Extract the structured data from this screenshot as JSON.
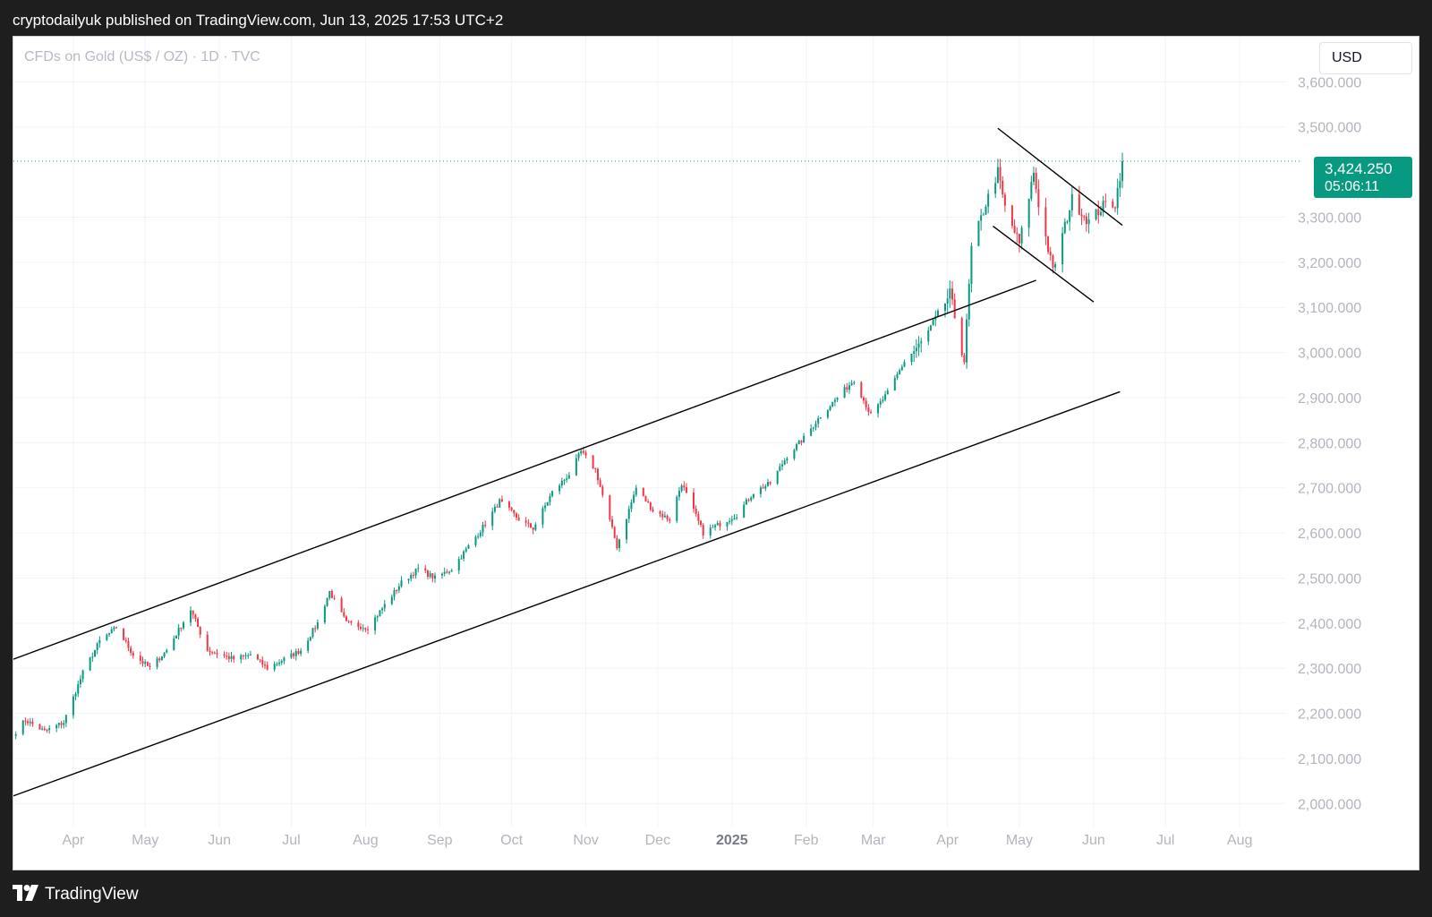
{
  "header": {
    "publish_line": "cryptodailyuk published on TradingView.com, Jun 13, 2025 17:53 UTC+2"
  },
  "chart": {
    "symbol_title": "CFDs on Gold (US$ / OZ) · 1D · TVC",
    "currency_button": "USD",
    "last_price": "3,424.250",
    "countdown": "05:06:11",
    "colors": {
      "up": "#089981",
      "down": "#f23645",
      "grid": "#f0f3fa",
      "axis_text": "#b2b5be",
      "trendline": "#000000",
      "price_line": "#089981"
    }
  },
  "footer": {
    "logo_icon": "tradingview-logo-icon",
    "brand": "TradingView"
  },
  "chart_data": {
    "type": "candlestick",
    "timeframe": "1D",
    "x_axis_labels": [
      {
        "label": "Apr",
        "date": "2024-04-01"
      },
      {
        "label": "May",
        "date": "2024-05-01"
      },
      {
        "label": "Jun",
        "date": "2024-06-01"
      },
      {
        "label": "Jul",
        "date": "2024-07-01"
      },
      {
        "label": "Aug",
        "date": "2024-08-01"
      },
      {
        "label": "Sep",
        "date": "2024-09-01"
      },
      {
        "label": "Oct",
        "date": "2024-10-01"
      },
      {
        "label": "Nov",
        "date": "2024-11-01"
      },
      {
        "label": "Dec",
        "date": "2024-12-01"
      },
      {
        "label": "2025",
        "date": "2025-01-01",
        "bold": true
      },
      {
        "label": "Feb",
        "date": "2025-02-01"
      },
      {
        "label": "Mar",
        "date": "2025-03-01"
      },
      {
        "label": "Apr",
        "date": "2025-04-01"
      },
      {
        "label": "May",
        "date": "2025-05-01"
      },
      {
        "label": "Jun",
        "date": "2025-06-01"
      },
      {
        "label": "Jul",
        "date": "2025-07-01"
      },
      {
        "label": "Aug",
        "date": "2025-08-01"
      }
    ],
    "y_axis_labels": [
      "3,600.000",
      "3,500.000",
      "3,300.000",
      "3,200.000",
      "3,100.000",
      "3,000.000",
      "2,900.000",
      "2,800.000",
      "2,700.000",
      "2,600.000",
      "2,500.000",
      "2,400.000",
      "2,300.000",
      "2,200.000",
      "2,100.000",
      "2,000.000"
    ],
    "y_ticks": [
      3600,
      3500,
      3300,
      3200,
      3100,
      3000,
      2900,
      2800,
      2700,
      2600,
      2500,
      2400,
      2300,
      2200,
      2100,
      2000
    ],
    "ylim": [
      1947,
      3700
    ],
    "xlim": [
      "2024-03-07",
      "2025-08-20"
    ],
    "last_price": 3424.25,
    "path_anchors": [
      [
        "2024-03-08",
        2160
      ],
      [
        "2024-03-12",
        2185
      ],
      [
        "2024-03-20",
        2160
      ],
      [
        "2024-03-28",
        2180
      ],
      [
        "2024-04-05",
        2290
      ],
      [
        "2024-04-12",
        2360
      ],
      [
        "2024-04-19",
        2390
      ],
      [
        "2024-04-26",
        2330
      ],
      [
        "2024-05-03",
        2300
      ],
      [
        "2024-05-10",
        2340
      ],
      [
        "2024-05-20",
        2430
      ],
      [
        "2024-05-27",
        2340
      ],
      [
        "2024-06-07",
        2320
      ],
      [
        "2024-06-14",
        2330
      ],
      [
        "2024-06-21",
        2300
      ],
      [
        "2024-06-28",
        2320
      ],
      [
        "2024-07-05",
        2340
      ],
      [
        "2024-07-12",
        2400
      ],
      [
        "2024-07-17",
        2470
      ],
      [
        "2024-07-24",
        2400
      ],
      [
        "2024-08-02",
        2390
      ],
      [
        "2024-08-09",
        2440
      ],
      [
        "2024-08-16",
        2490
      ],
      [
        "2024-08-23",
        2520
      ],
      [
        "2024-08-30",
        2500
      ],
      [
        "2024-09-06",
        2520
      ],
      [
        "2024-09-13",
        2570
      ],
      [
        "2024-09-20",
        2620
      ],
      [
        "2024-09-26",
        2670
      ],
      [
        "2024-10-04",
        2630
      ],
      [
        "2024-10-10",
        2610
      ],
      [
        "2024-10-18",
        2690
      ],
      [
        "2024-10-25",
        2730
      ],
      [
        "2024-10-30",
        2780
      ],
      [
        "2024-11-05",
        2740
      ],
      [
        "2024-11-14",
        2570
      ],
      [
        "2024-11-22",
        2700
      ],
      [
        "2024-11-29",
        2650
      ],
      [
        "2024-12-06",
        2630
      ],
      [
        "2024-12-11",
        2710
      ],
      [
        "2024-12-20",
        2600
      ],
      [
        "2025-01-03",
        2640
      ],
      [
        "2025-01-10",
        2690
      ],
      [
        "2025-01-17",
        2710
      ],
      [
        "2025-01-24",
        2770
      ],
      [
        "2025-01-31",
        2810
      ],
      [
        "2025-02-07",
        2860
      ],
      [
        "2025-02-14",
        2900
      ],
      [
        "2025-02-21",
        2940
      ],
      [
        "2025-02-28",
        2860
      ],
      [
        "2025-03-07",
        2910
      ],
      [
        "2025-03-14",
        2980
      ],
      [
        "2025-03-21",
        3020
      ],
      [
        "2025-03-28",
        3080
      ],
      [
        "2025-04-02",
        3130
      ],
      [
        "2025-04-08",
        2980
      ],
      [
        "2025-04-11",
        3230
      ],
      [
        "2025-04-17",
        3330
      ],
      [
        "2025-04-22",
        3400
      ],
      [
        "2025-04-25",
        3320
      ],
      [
        "2025-05-01",
        3240
      ],
      [
        "2025-05-07",
        3400
      ],
      [
        "2025-05-09",
        3330
      ],
      [
        "2025-05-15",
        3180
      ],
      [
        "2025-05-23",
        3340
      ],
      [
        "2025-05-30",
        3290
      ],
      [
        "2025-06-06",
        3330
      ],
      [
        "2025-06-10",
        3330
      ],
      [
        "2025-06-13",
        3424.25
      ]
    ],
    "trendlines": [
      {
        "name": "channel-upper",
        "from": [
          "2024-03-07",
          2320
        ],
        "to": [
          "2025-05-08",
          3160
        ]
      },
      {
        "name": "channel-lower",
        "from": [
          "2024-03-07",
          2017
        ],
        "to": [
          "2025-06-12",
          2913
        ]
      },
      {
        "name": "flag-upper",
        "from": [
          "2025-04-22",
          3497
        ],
        "to": [
          "2025-06-13",
          3282
        ]
      },
      {
        "name": "flag-lower",
        "from": [
          "2025-04-20",
          3280
        ],
        "to": [
          "2025-06-01",
          3112
        ]
      }
    ],
    "grid": true
  }
}
